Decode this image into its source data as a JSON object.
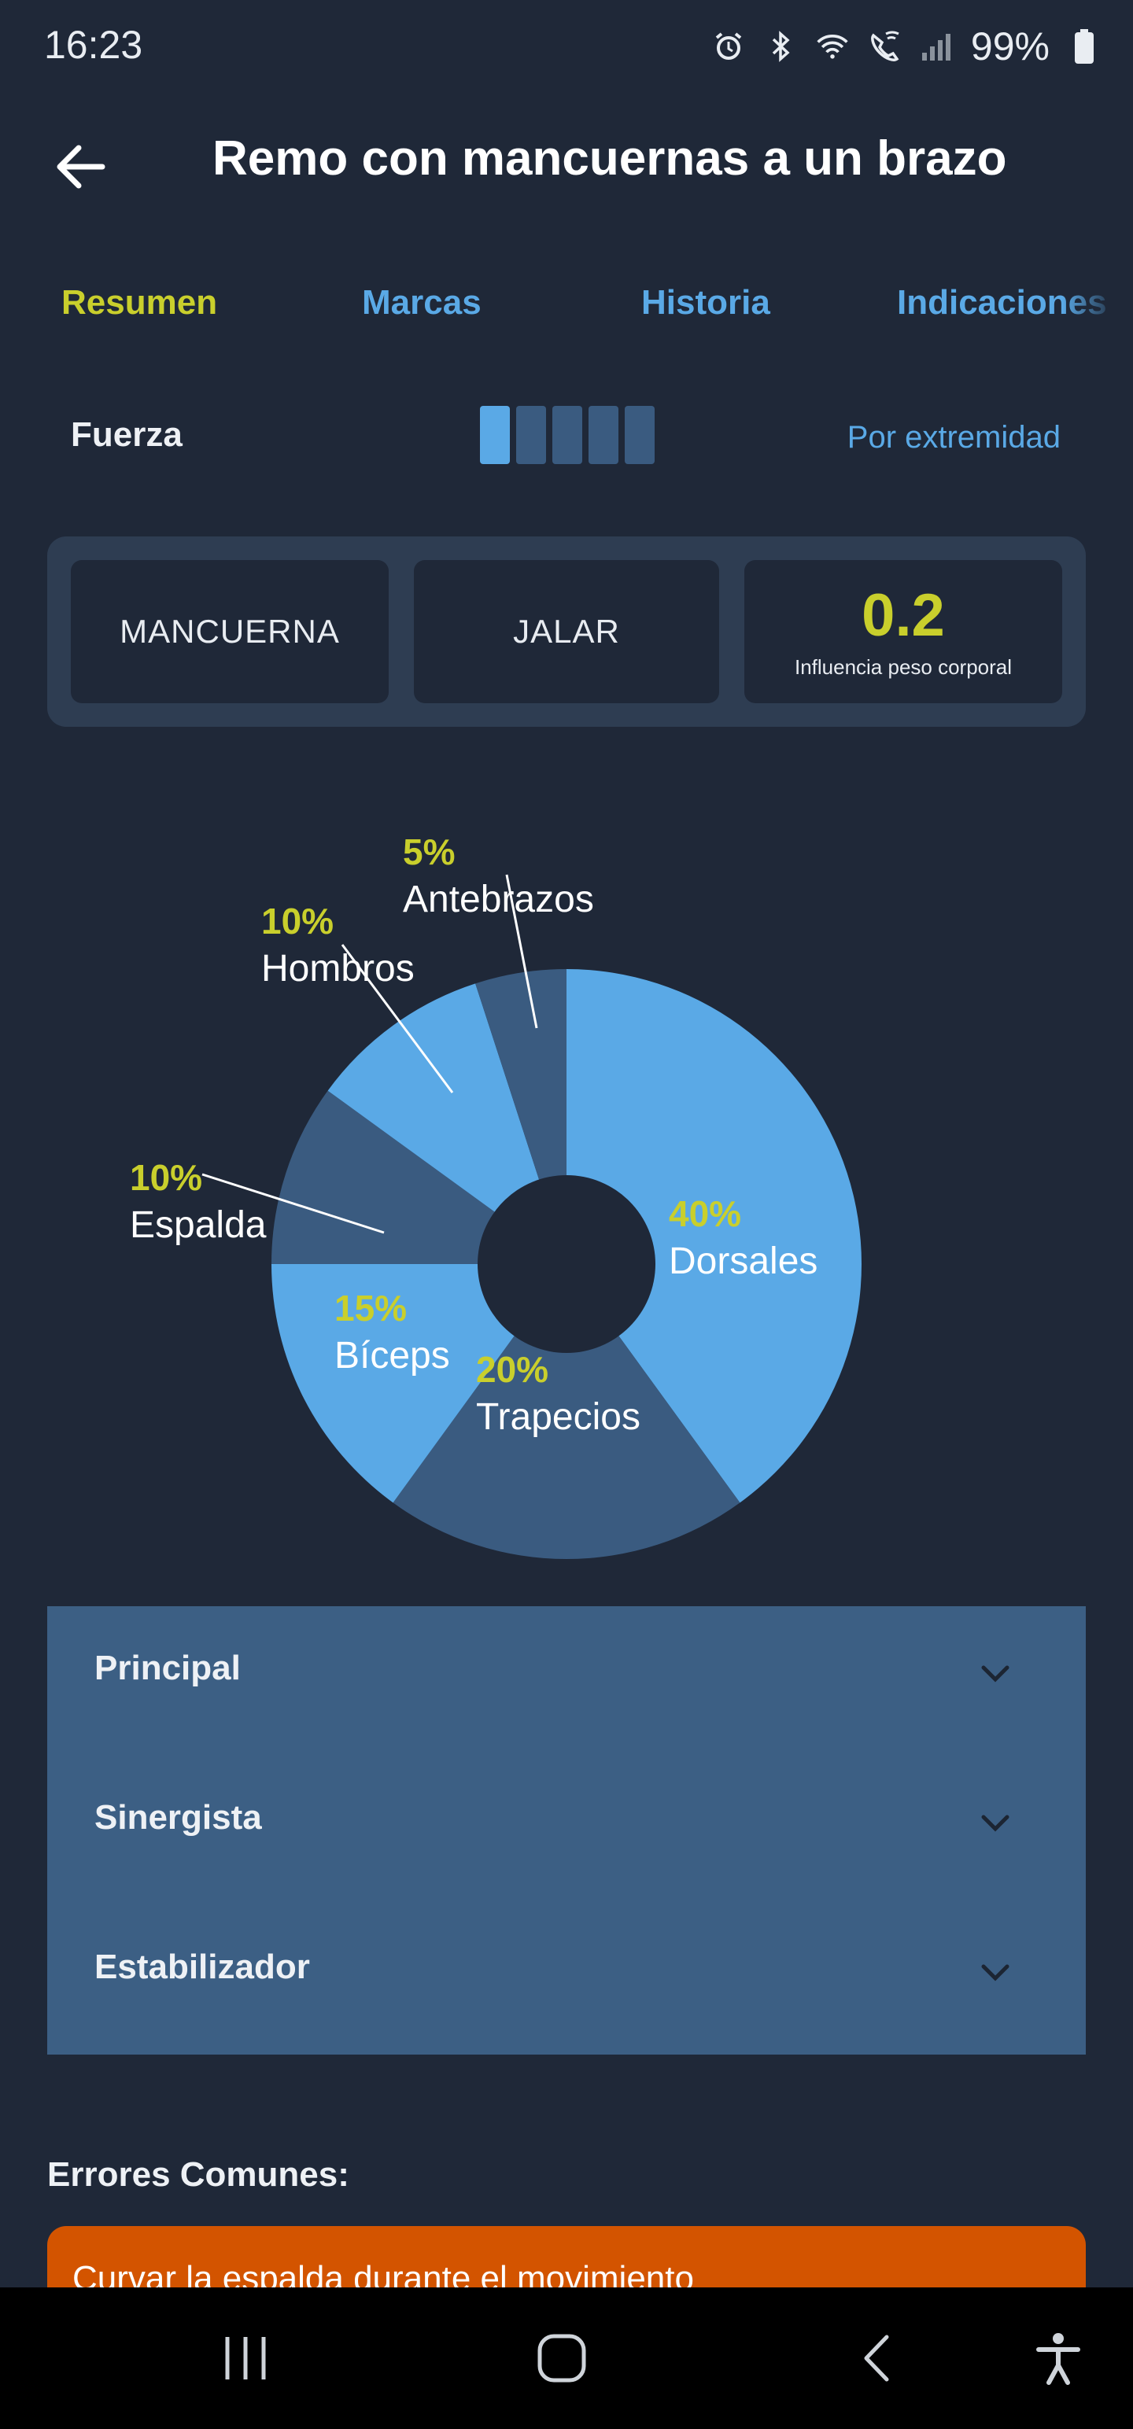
{
  "status_bar": {
    "time": "16:23",
    "battery": "99%",
    "icons": [
      "alarm-icon",
      "bluetooth-icon",
      "wifi-icon",
      "wifi-call-icon",
      "signal-icon",
      "battery-icon"
    ]
  },
  "app_bar": {
    "title": "Remo con mancuernas a un brazo",
    "back_icon": "arrow-left-icon"
  },
  "tabs": [
    {
      "label": "Resumen",
      "active": true
    },
    {
      "label": "Marcas",
      "active": false
    },
    {
      "label": "Historia",
      "active": false
    },
    {
      "label": "Indicaciones",
      "active": false
    }
  ],
  "strength": {
    "label": "Fuerza",
    "level": 1,
    "max_level": 5,
    "per_limb_label": "Por extremidad"
  },
  "info": {
    "equipment": "MANCUERNA",
    "movement": "JALAR",
    "bodyweight_value": "0.2",
    "bodyweight_label": "Influencia peso corporal"
  },
  "chart_data": {
    "type": "pie",
    "donut": true,
    "slices": [
      {
        "name": "Dorsales",
        "value": 40,
        "label": "40%",
        "color": "#5aa9e6"
      },
      {
        "name": "Trapecios",
        "value": 20,
        "label": "20%",
        "color": "#3a5b80"
      },
      {
        "name": "Bíceps",
        "value": 15,
        "label": "15%",
        "color": "#5aa9e6"
      },
      {
        "name": "Espalda",
        "value": 10,
        "label": "10%",
        "color": "#3a5b80"
      },
      {
        "name": "Hombros",
        "value": 10,
        "label": "10%",
        "color": "#5aa9e6"
      },
      {
        "name": "Antebrazos",
        "value": 5,
        "label": "5%",
        "color": "#3a5b80"
      }
    ],
    "label_color": "#c9cf2c"
  },
  "accordion": [
    {
      "label": "Principal"
    },
    {
      "label": "Sinergista"
    },
    {
      "label": "Estabilizador"
    }
  ],
  "errors": {
    "title": "Errores Comunes:",
    "items": [
      "Curvar la espalda durante el movimiento"
    ]
  },
  "nav": {
    "recents_icon": "recents-icon",
    "home_icon": "home-icon",
    "back_icon": "back-nav-icon",
    "accessibility_icon": "accessibility-icon"
  }
}
